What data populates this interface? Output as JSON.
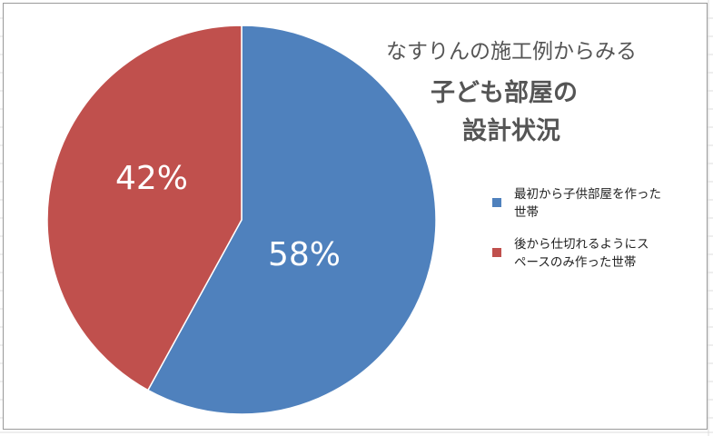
{
  "chart_data": {
    "type": "pie",
    "title_lines": [
      "なすりんの施工例からみる",
      "子ども部屋の",
      "設計状況"
    ],
    "slices": [
      {
        "label": "最初から子供部屋を作った世帯",
        "value": 58,
        "value_label": "58%",
        "color": "#4f81bd"
      },
      {
        "label": "後から仕切れるようにスペースのみ作った世帯",
        "value": 42,
        "value_label": "42%",
        "color": "#c0504d"
      }
    ],
    "legend_position": "right",
    "legend": [
      {
        "lines": [
          "最初から子供部屋を作った",
          "世帯"
        ],
        "color": "#4f81bd"
      },
      {
        "lines": [
          "後から仕切れるようにス",
          "ペースのみ作った世帯"
        ],
        "color": "#c0504d"
      }
    ]
  }
}
